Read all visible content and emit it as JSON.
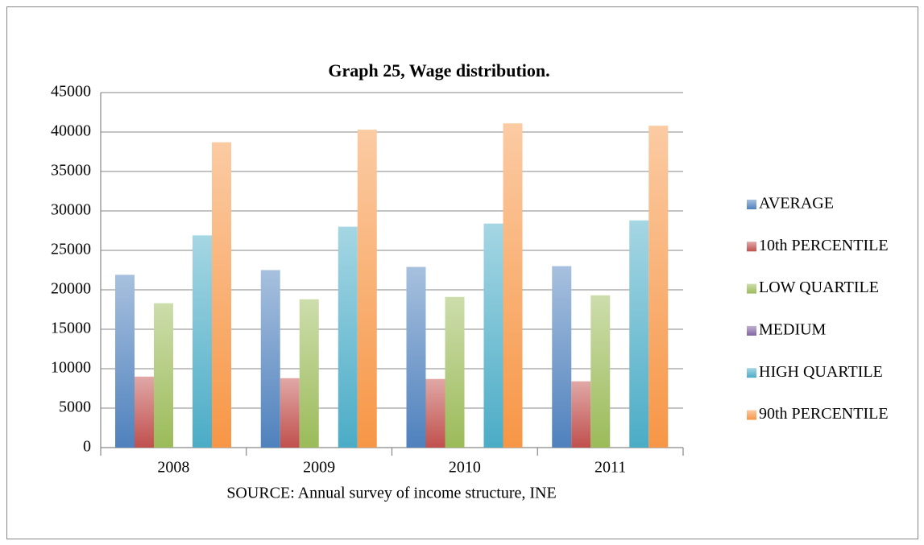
{
  "chart_data": {
    "type": "bar",
    "title": "Graph 25, Wage distribution.",
    "source": "SOURCE: Annual survey of income structure, INE",
    "categories": [
      "2008",
      "2009",
      "2010",
      "2011"
    ],
    "series": [
      {
        "name": "AVERAGE",
        "color": "#4f81bd",
        "values": [
          21900,
          22500,
          22900,
          23000
        ]
      },
      {
        "name": "10th PERCENTILE",
        "color": "#c0504d",
        "values": [
          9000,
          8800,
          8700,
          8400
        ]
      },
      {
        "name": "LOW QUARTILE",
        "color": "#9bbb59",
        "values": [
          18300,
          18800,
          19100,
          19300
        ]
      },
      {
        "name": "MEDIUM",
        "color": "#8064a2",
        "values": [
          null,
          null,
          null,
          null
        ]
      },
      {
        "name": "HIGH QUARTILE",
        "color": "#4bacc6",
        "values": [
          26900,
          28000,
          28400,
          28800
        ]
      },
      {
        "name": "90th PERCENTILE",
        "color": "#f79646",
        "values": [
          38700,
          40300,
          41100,
          40800
        ]
      }
    ],
    "ylim": [
      0,
      45000
    ],
    "yticks": [
      0,
      5000,
      10000,
      15000,
      20000,
      25000,
      30000,
      35000,
      40000,
      45000
    ],
    "grid": true,
    "legend": "right"
  }
}
